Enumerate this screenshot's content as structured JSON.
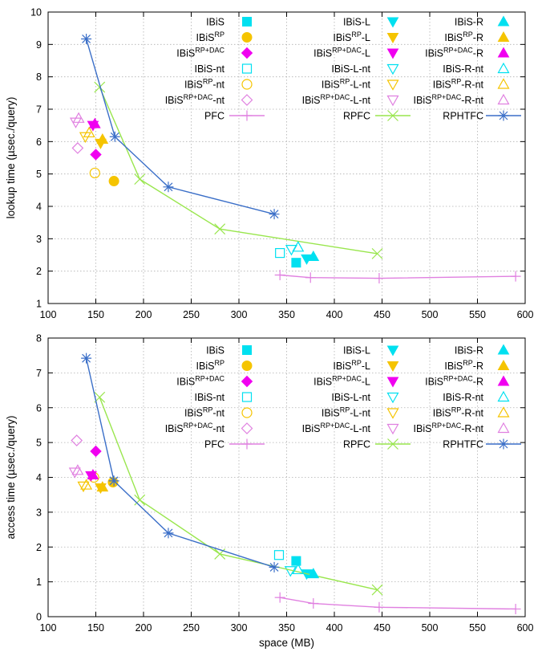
{
  "colors": {
    "cyan": "#00e0f0",
    "yellow": "#f5c400",
    "magenta": "#f000f0",
    "pink": "#e080e0",
    "lime": "#99e64d",
    "blue": "#3b6fc8",
    "grid": "#b0b0b0"
  },
  "chart_data": [
    {
      "type": "scatter",
      "title": "",
      "xlabel": "",
      "ylabel": "lookup time (µsec./query)",
      "xlim": [
        100,
        600
      ],
      "ylim": [
        1,
        10
      ],
      "xticks": [
        100,
        150,
        200,
        250,
        300,
        350,
        400,
        450,
        500,
        550,
        600
      ],
      "yticks": [
        1,
        2,
        3,
        4,
        5,
        6,
        7,
        8,
        9,
        10
      ],
      "grid": true,
      "legend": {
        "placement": "top-right",
        "columns": 3
      },
      "series": [
        {
          "name": "IBiS",
          "sup": "",
          "tail": "",
          "marker": "square-filled",
          "color": "cyan",
          "points": [
            [
              360,
              2.26
            ]
          ]
        },
        {
          "name": "IBiS",
          "sup": "RP",
          "tail": "",
          "marker": "circle-filled",
          "color": "yellow",
          "points": [
            [
              169,
              4.78
            ]
          ]
        },
        {
          "name": "IBiS",
          "sup": "RP+DAC",
          "tail": "",
          "marker": "diamond-filled",
          "color": "magenta",
          "points": [
            [
              150,
              5.6
            ]
          ]
        },
        {
          "name": "IBiS",
          "sup": "",
          "tail": "-nt",
          "marker": "square-open",
          "color": "cyan",
          "points": [
            [
              343,
              2.56
            ]
          ]
        },
        {
          "name": "IBiS",
          "sup": "RP",
          "tail": "-nt",
          "marker": "circle-open",
          "color": "yellow",
          "points": [
            [
              149,
              5.03
            ]
          ]
        },
        {
          "name": "IBiS",
          "sup": "RP+DAC",
          "tail": "-nt",
          "marker": "diamond-open",
          "color": "pink",
          "points": [
            [
              131,
              5.8
            ]
          ]
        },
        {
          "name": "PFC",
          "sup": "",
          "tail": "",
          "marker": "plus",
          "color": "pink",
          "line": true,
          "points": [
            [
              343,
              1.88
            ],
            [
              375,
              1.8
            ],
            [
              447,
              1.78
            ],
            [
              590,
              1.84
            ]
          ]
        },
        {
          "name": "IBiS-L",
          "sup": "",
          "tail": "",
          "marker": "triangle-down-filled",
          "color": "cyan",
          "points": [
            [
              371,
              2.38
            ]
          ]
        },
        {
          "name": "IBiS",
          "sup": "RP",
          "tail": "-L",
          "marker": "triangle-down-filled",
          "color": "yellow",
          "points": [
            [
              155,
              5.95
            ]
          ]
        },
        {
          "name": "IBiS",
          "sup": "RP+DAC",
          "tail": "-L",
          "marker": "triangle-down-filled",
          "color": "magenta",
          "points": [
            [
              147,
              6.5
            ]
          ]
        },
        {
          "name": "IBiS-L-nt",
          "sup": "",
          "tail": "",
          "marker": "triangle-down-open",
          "color": "cyan",
          "points": [
            [
              355,
              2.67
            ]
          ]
        },
        {
          "name": "IBiS",
          "sup": "RP",
          "tail": "-L-nt",
          "marker": "triangle-down-open",
          "color": "yellow",
          "points": [
            [
              139,
              6.15
            ]
          ]
        },
        {
          "name": "IBiS",
          "sup": "RP+DAC",
          "tail": "-L-nt",
          "marker": "triangle-down-open",
          "color": "pink",
          "points": [
            [
              129,
              6.6
            ]
          ]
        },
        {
          "name": "RPFC",
          "sup": "",
          "tail": "",
          "marker": "x",
          "color": "lime",
          "line": true,
          "points": [
            [
              154,
              7.68
            ],
            [
              196,
              4.84
            ],
            [
              280,
              3.3
            ],
            [
              445,
              2.54
            ]
          ]
        },
        {
          "name": "IBiS-R",
          "sup": "",
          "tail": "",
          "marker": "triangle-up-filled",
          "color": "cyan",
          "points": [
            [
              378,
              2.45
            ]
          ]
        },
        {
          "name": "IBiS",
          "sup": "RP",
          "tail": "-R",
          "marker": "triangle-up-filled",
          "color": "yellow",
          "points": [
            [
              157,
              6.07
            ]
          ]
        },
        {
          "name": "IBiS",
          "sup": "RP+DAC",
          "tail": "-R",
          "marker": "triangle-up-filled",
          "color": "magenta",
          "points": [
            [
              149,
              6.55
            ]
          ]
        },
        {
          "name": "IBiS-R-nt",
          "sup": "",
          "tail": "",
          "marker": "triangle-up-open",
          "color": "cyan",
          "points": [
            [
              362,
              2.74
            ]
          ]
        },
        {
          "name": "IBiS",
          "sup": "RP",
          "tail": "-R-nt",
          "marker": "triangle-up-open",
          "color": "yellow",
          "points": [
            [
              143,
              6.27
            ]
          ]
        },
        {
          "name": "IBiS",
          "sup": "RP+DAC",
          "tail": "-R-nt",
          "marker": "triangle-up-open",
          "color": "pink",
          "points": [
            [
              132,
              6.72
            ]
          ]
        },
        {
          "name": "RPHTFC",
          "sup": "",
          "tail": "",
          "marker": "star",
          "color": "blue",
          "line": true,
          "points": [
            [
              140,
              9.17
            ],
            [
              170,
              6.15
            ],
            [
              226,
              4.6
            ],
            [
              337,
              3.76
            ]
          ]
        }
      ]
    },
    {
      "type": "scatter",
      "title": "",
      "xlabel": "space (MB)",
      "ylabel": "access time (µsec./query)",
      "xlim": [
        100,
        600
      ],
      "ylim": [
        0,
        8
      ],
      "xticks": [
        100,
        150,
        200,
        250,
        300,
        350,
        400,
        450,
        500,
        550,
        600
      ],
      "yticks": [
        0,
        1,
        2,
        3,
        4,
        5,
        6,
        7,
        8
      ],
      "grid": true,
      "legend": {
        "placement": "top-right",
        "columns": 3
      },
      "series": [
        {
          "name": "IBiS",
          "sup": "",
          "tail": "",
          "marker": "square-filled",
          "color": "cyan",
          "points": [
            [
              360,
              1.6
            ]
          ]
        },
        {
          "name": "IBiS",
          "sup": "RP",
          "tail": "",
          "marker": "circle-filled",
          "color": "yellow",
          "points": [
            [
              168,
              3.86
            ]
          ]
        },
        {
          "name": "IBiS",
          "sup": "RP+DAC",
          "tail": "",
          "marker": "diamond-filled",
          "color": "magenta",
          "points": [
            [
              150,
              4.75
            ]
          ]
        },
        {
          "name": "IBiS",
          "sup": "",
          "tail": "-nt",
          "marker": "square-open",
          "color": "cyan",
          "points": [
            [
              342,
              1.77
            ]
          ]
        },
        {
          "name": "IBiS",
          "sup": "RP",
          "tail": "-nt",
          "marker": "circle-open",
          "color": "yellow",
          "points": [
            [
              148,
              4.0
            ]
          ]
        },
        {
          "name": "IBiS",
          "sup": "RP+DAC",
          "tail": "-nt",
          "marker": "diamond-open",
          "color": "pink",
          "points": [
            [
              130,
              5.06
            ]
          ]
        },
        {
          "name": "PFC",
          "sup": "",
          "tail": "",
          "marker": "plus",
          "color": "pink",
          "line": true,
          "points": [
            [
              343,
              0.55
            ],
            [
              378,
              0.38
            ],
            [
              447,
              0.27
            ],
            [
              590,
              0.22
            ]
          ]
        },
        {
          "name": "IBiS-L",
          "sup": "",
          "tail": "",
          "marker": "triangle-down-filled",
          "color": "cyan",
          "points": [
            [
              371,
              1.23
            ]
          ]
        },
        {
          "name": "IBiS",
          "sup": "RP",
          "tail": "-L",
          "marker": "triangle-down-filled",
          "color": "yellow",
          "points": [
            [
              155,
              3.7
            ]
          ]
        },
        {
          "name": "IBiS",
          "sup": "RP+DAC",
          "tail": "-L",
          "marker": "triangle-down-filled",
          "color": "magenta",
          "points": [
            [
              145,
              4.05
            ]
          ]
        },
        {
          "name": "IBiS-L-nt",
          "sup": "",
          "tail": "",
          "marker": "triangle-down-open",
          "color": "cyan",
          "points": [
            [
              354,
              1.32
            ]
          ]
        },
        {
          "name": "IBiS",
          "sup": "RP",
          "tail": "-L-nt",
          "marker": "triangle-down-open",
          "color": "yellow",
          "points": [
            [
              137,
              3.75
            ]
          ]
        },
        {
          "name": "IBiS",
          "sup": "RP+DAC",
          "tail": "-L-nt",
          "marker": "triangle-down-open",
          "color": "pink",
          "points": [
            [
              128,
              4.15
            ]
          ]
        },
        {
          "name": "RPFC",
          "sup": "",
          "tail": "",
          "marker": "x",
          "color": "lime",
          "line": true,
          "points": [
            [
              154,
              6.3
            ],
            [
              196,
              3.35
            ],
            [
              280,
              1.8
            ],
            [
              445,
              0.77
            ]
          ]
        },
        {
          "name": "IBiS-R",
          "sup": "",
          "tail": "",
          "marker": "triangle-up-filled",
          "color": "cyan",
          "points": [
            [
              378,
              1.23
            ]
          ]
        },
        {
          "name": "IBiS",
          "sup": "RP",
          "tail": "-R",
          "marker": "triangle-up-filled",
          "color": "yellow",
          "points": [
            [
              157,
              3.72
            ]
          ]
        },
        {
          "name": "IBiS",
          "sup": "RP+DAC",
          "tail": "-R",
          "marker": "triangle-up-filled",
          "color": "magenta",
          "points": [
            [
              147,
              4.07
            ]
          ]
        },
        {
          "name": "IBiS-R-nt",
          "sup": "",
          "tail": "",
          "marker": "triangle-up-open",
          "color": "cyan",
          "points": [
            [
              362,
              1.35
            ]
          ]
        },
        {
          "name": "IBiS",
          "sup": "RP",
          "tail": "-R-nt",
          "marker": "triangle-up-open",
          "color": "yellow",
          "points": [
            [
              140,
              3.78
            ]
          ]
        },
        {
          "name": "IBiS",
          "sup": "RP+DAC",
          "tail": "-R-nt",
          "marker": "triangle-up-open",
          "color": "pink",
          "points": [
            [
              131,
              4.2
            ]
          ]
        },
        {
          "name": "RPHTFC",
          "sup": "",
          "tail": "",
          "marker": "star",
          "color": "blue",
          "line": true,
          "points": [
            [
              140,
              7.42
            ],
            [
              169,
              3.9
            ],
            [
              226,
              2.4
            ],
            [
              337,
              1.42
            ]
          ]
        }
      ]
    }
  ]
}
